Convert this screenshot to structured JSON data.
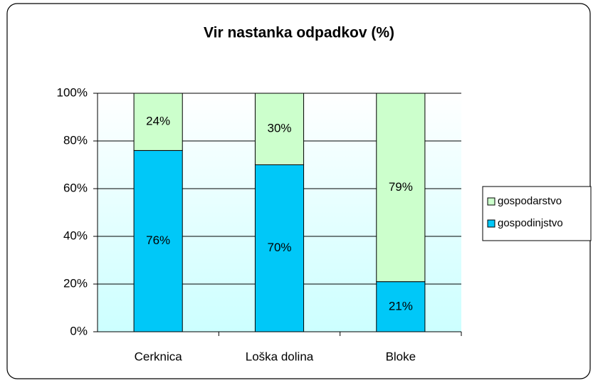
{
  "chart_data": {
    "type": "stacked_bar",
    "title": "Vir nastanka odpadkov (%)",
    "categories": [
      "Cerknica",
      "Loška dolina",
      "Bloke"
    ],
    "series": [
      {
        "name": "gospodinjstvo",
        "color": "#00c8f8",
        "values": [
          76,
          70,
          21
        ],
        "value_labels": [
          "76%",
          "70%",
          "21%"
        ]
      },
      {
        "name": "gospodarstvo",
        "color": "#ccffcc",
        "values": [
          24,
          30,
          79
        ],
        "value_labels": [
          "24%",
          "30%",
          "79%"
        ]
      }
    ],
    "ylim": [
      0,
      100
    ],
    "yticks": [
      {
        "value": 0,
        "label": "0%"
      },
      {
        "value": 20,
        "label": "20%"
      },
      {
        "value": 40,
        "label": "40%"
      },
      {
        "value": 60,
        "label": "60%"
      },
      {
        "value": 80,
        "label": "80%"
      },
      {
        "value": 100,
        "label": "100%"
      }
    ],
    "grid": true,
    "legend": "right"
  }
}
